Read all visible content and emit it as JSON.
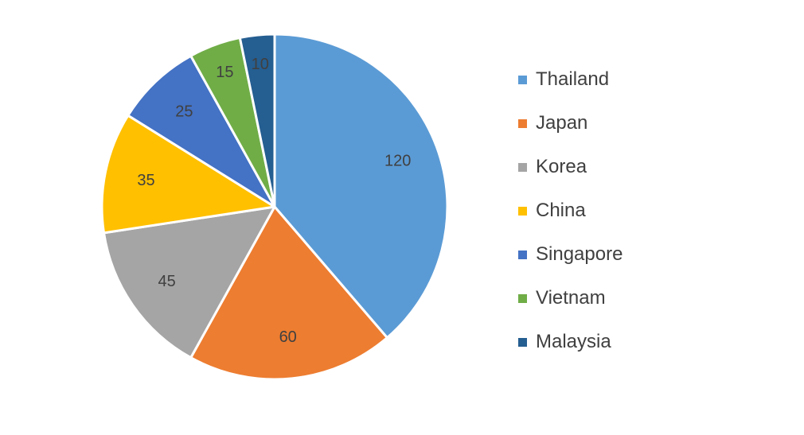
{
  "chart_data": {
    "type": "pie",
    "categories": [
      "Thailand",
      "Japan",
      "Korea",
      "China",
      "Singapore",
      "Vietnam",
      "Malaysia"
    ],
    "values": [
      120,
      60,
      45,
      35,
      25,
      15,
      10
    ],
    "colors": [
      "#5B9BD5",
      "#ED7D31",
      "#A5A5A5",
      "#FFC000",
      "#4472C4",
      "#70AD47",
      "#255E91"
    ],
    "data_labels": [
      "120",
      "60",
      "45",
      "35",
      "25",
      "15",
      "10"
    ],
    "title": "",
    "legend_position": "right",
    "start_angle_deg": 0,
    "direction": "clockwise"
  }
}
